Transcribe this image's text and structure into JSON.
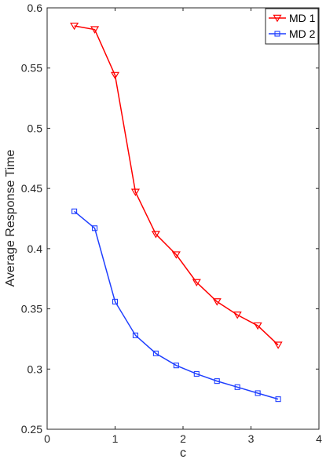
{
  "chart_data": {
    "type": "line",
    "xlabel": "c",
    "ylabel": "Average Response Time",
    "xlim": [
      0,
      4
    ],
    "ylim": [
      0.25,
      0.6
    ],
    "xticks": [
      0,
      1,
      2,
      3,
      4
    ],
    "xtick_labels": [
      "0",
      "1",
      "2",
      "3",
      "4"
    ],
    "yticks": [
      0.25,
      0.3,
      0.35,
      0.4,
      0.45,
      0.5,
      0.55,
      0.6
    ],
    "ytick_labels": [
      "0.25",
      "0.3",
      "0.35",
      "0.4",
      "0.45",
      "0.5",
      "0.55",
      "0.6"
    ],
    "grid": false,
    "legend_position": "top-right",
    "x": [
      0.4,
      0.7,
      1.0,
      1.3,
      1.6,
      1.9,
      2.2,
      2.5,
      2.8,
      3.1,
      3.4
    ],
    "series": [
      {
        "name": "MD 1",
        "color": "#ff0000",
        "marker": "triangle-down",
        "values": [
          0.585,
          0.582,
          0.544,
          0.447,
          0.412,
          0.395,
          0.372,
          0.356,
          0.345,
          0.336,
          0.32
        ]
      },
      {
        "name": "MD 2",
        "color": "#1f3fff",
        "marker": "square",
        "values": [
          0.431,
          0.417,
          0.356,
          0.328,
          0.313,
          0.303,
          0.296,
          0.29,
          0.285,
          0.28,
          0.275
        ]
      }
    ]
  }
}
